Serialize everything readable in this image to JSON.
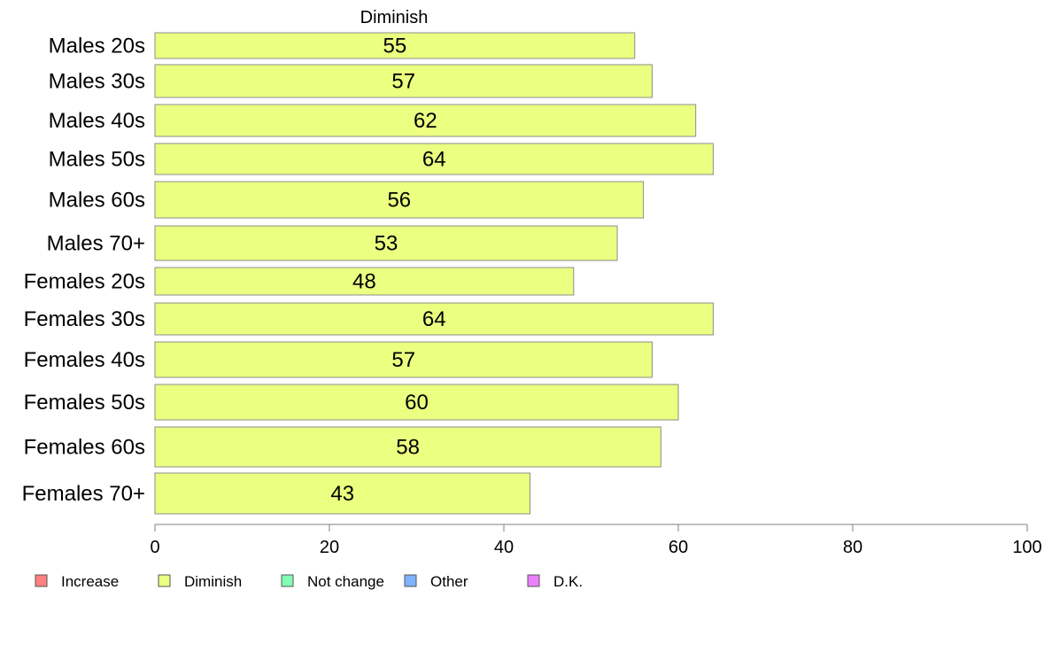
{
  "chart_data": {
    "type": "bar",
    "orientation": "horizontal",
    "title": "Diminish",
    "categories": [
      "Males 20s",
      "Males 30s",
      "Males 40s",
      "Males 50s",
      "Males 60s",
      "Males 70+",
      "Females 20s",
      "Females 30s",
      "Females 40s",
      "Females 50s",
      "Females 60s",
      "Females 70+"
    ],
    "series": [
      {
        "name": "Diminish",
        "values": [
          55,
          57,
          62,
          64,
          56,
          53,
          48,
          64,
          57,
          60,
          58,
          43
        ]
      }
    ],
    "xlim": [
      0,
      100
    ],
    "xticks": [
      0,
      20,
      40,
      60,
      80,
      100
    ],
    "xlabel": "",
    "ylabel": "",
    "grid": false,
    "bar_color": "#ebff80",
    "legend": {
      "placement": "bottom",
      "items": [
        {
          "label": "Increase",
          "color": "#ff8080"
        },
        {
          "label": "Diminish",
          "color": "#ebff80"
        },
        {
          "label": "Not change",
          "color": "#80ffb4"
        },
        {
          "label": "Other",
          "color": "#80b4ff"
        },
        {
          "label": "D.K.",
          "color": "#eb80ff"
        }
      ]
    }
  }
}
